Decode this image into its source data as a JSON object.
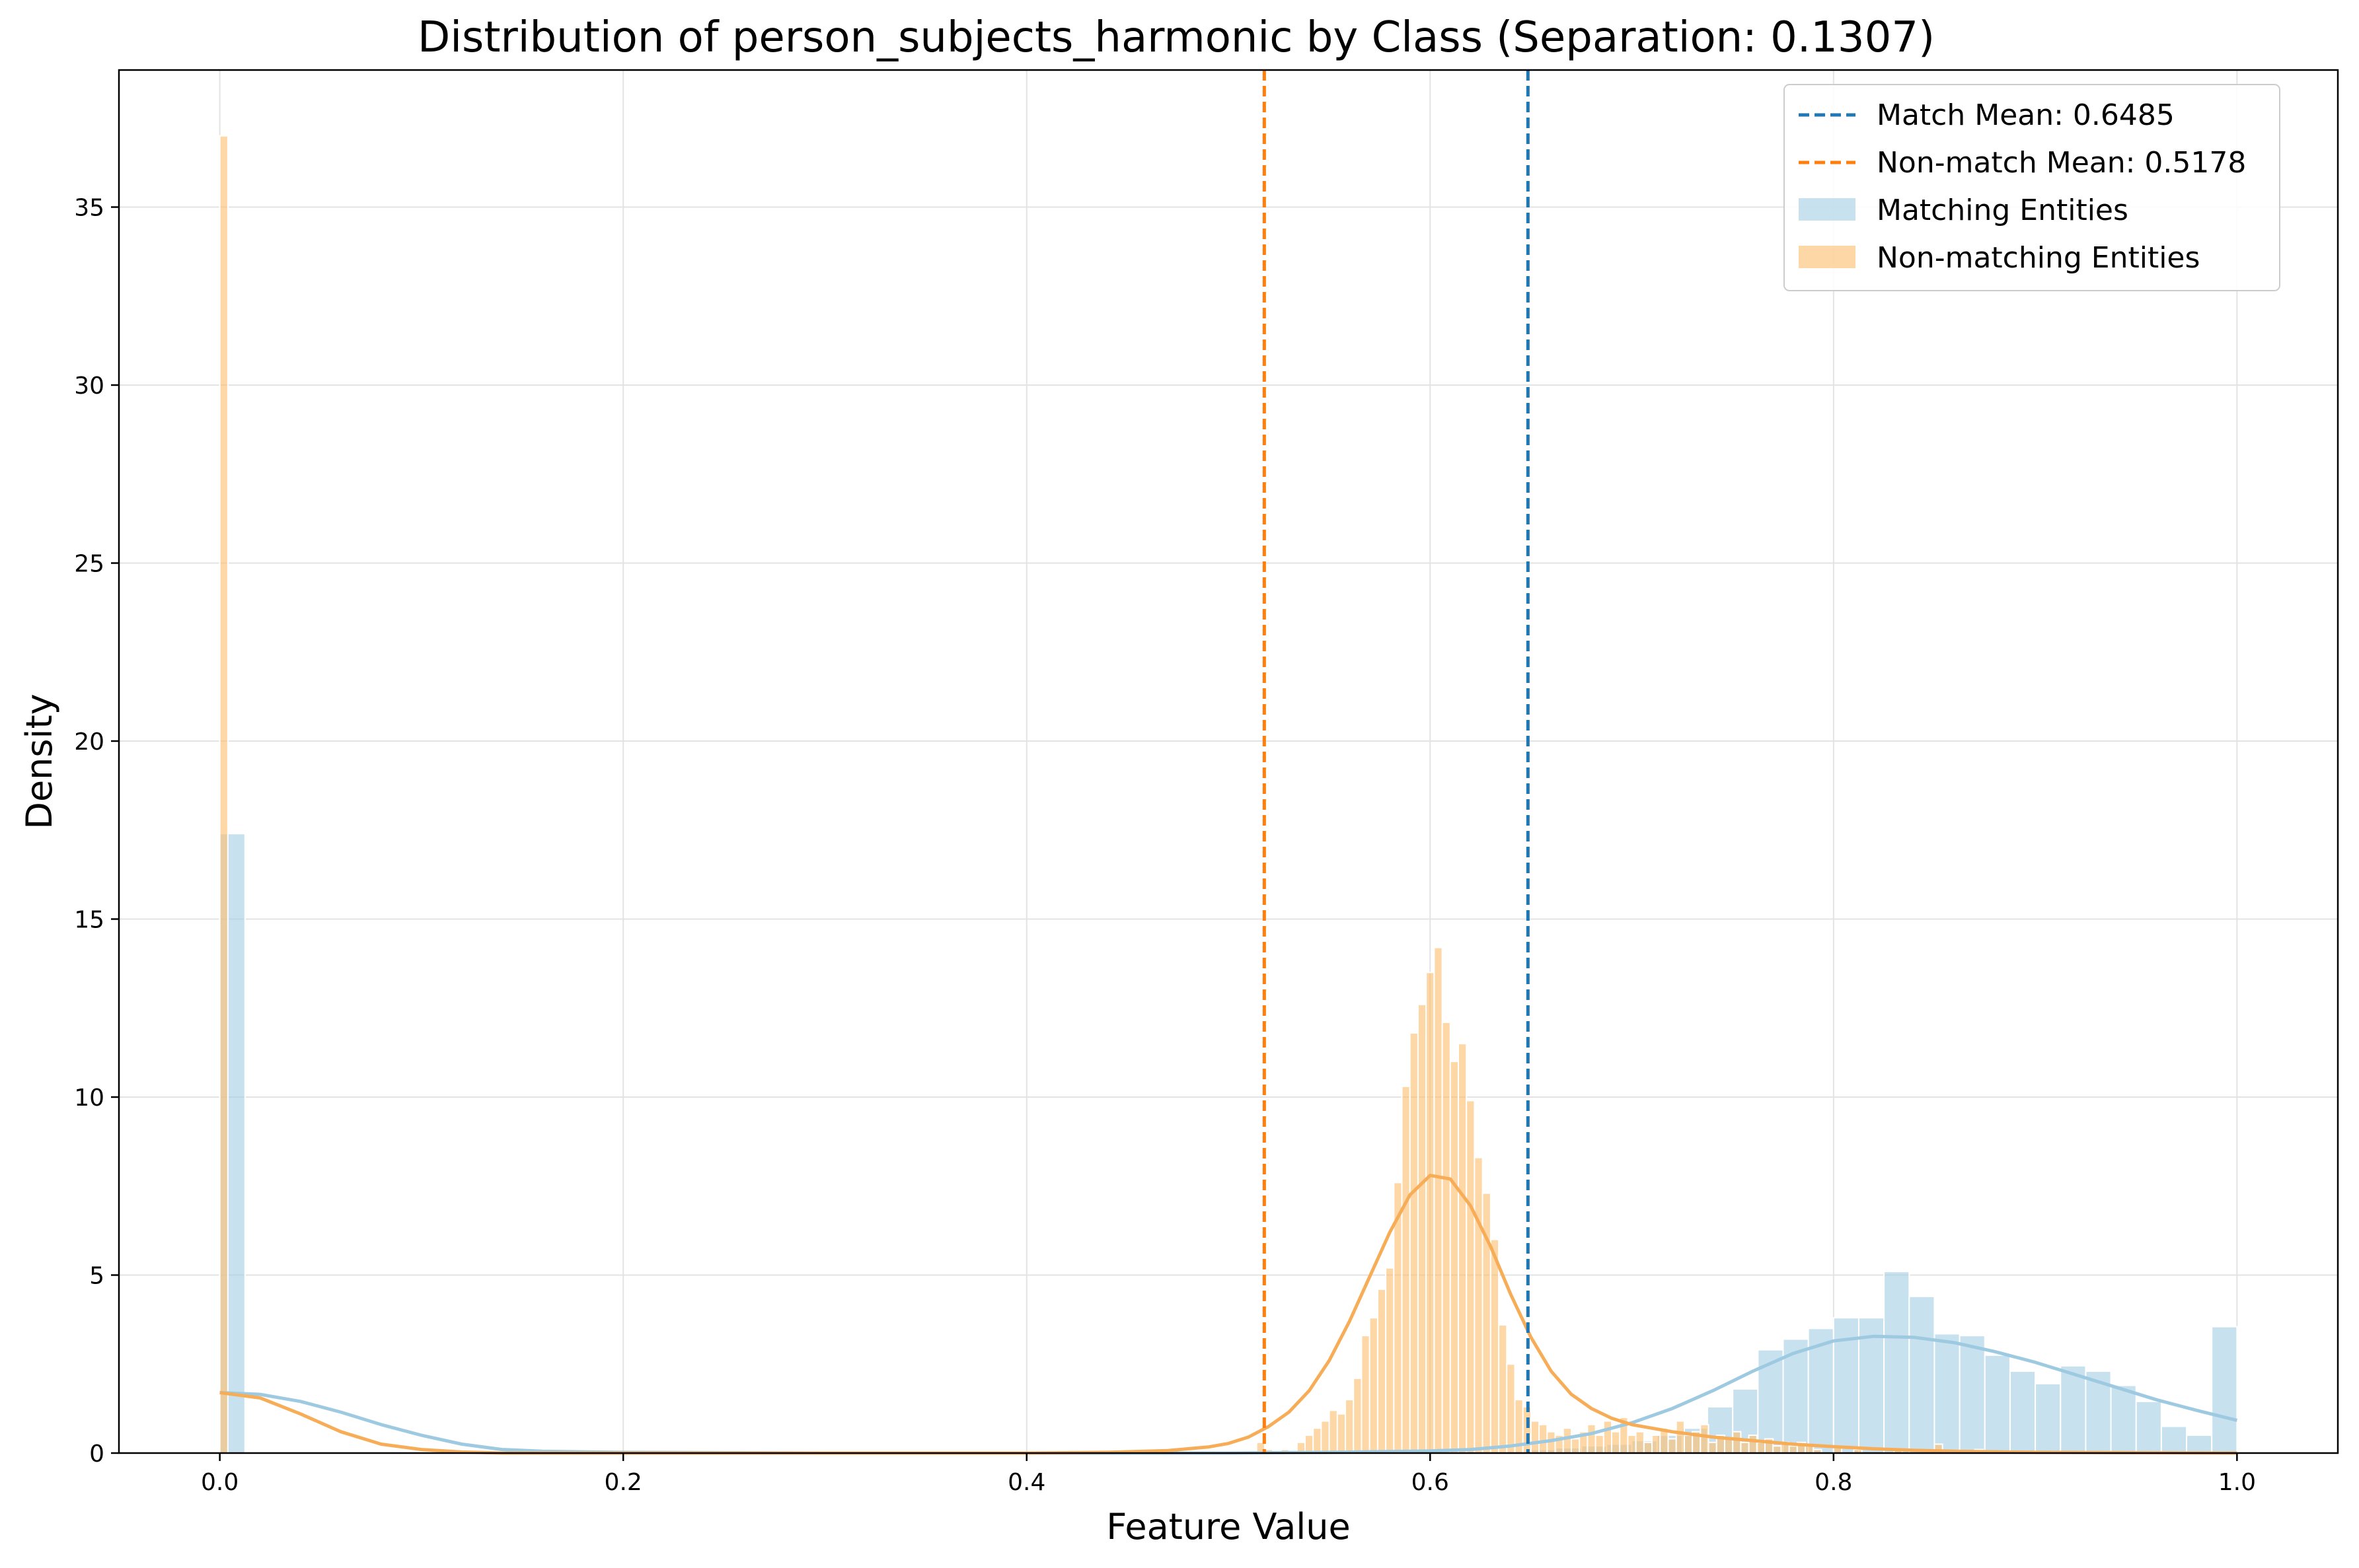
{
  "chart_data": {
    "type": "bar",
    "title": "Distribution of person_subjects_harmonic by Class (Separation: 0.1307)",
    "xlabel": "Feature Value",
    "ylabel": "Density",
    "xlim": [
      -0.05,
      1.05
    ],
    "ylim": [
      0,
      38.85
    ],
    "xticks": [
      "0.0",
      "0.2",
      "0.4",
      "0.6",
      "0.8",
      "1.0"
    ],
    "yticks": [
      "0",
      "5",
      "10",
      "15",
      "20",
      "25",
      "30",
      "35"
    ],
    "grid": true,
    "legend_position": "upper right",
    "colors": {
      "match_line": "#1f77b4",
      "nonmatch_line": "#ff7f0e",
      "match_fill": "#a6cee3",
      "nonmatch_fill": "#fdbf6f",
      "match_kde": "#9ecae1",
      "nonmatch_kde": "#f7ad57"
    },
    "legend": [
      {
        "label": "Match Mean: 0.6485",
        "kind": "dashed-line",
        "color": "#1f77b4"
      },
      {
        "label": "Non-match Mean: 0.5178",
        "kind": "dashed-line",
        "color": "#ff7f0e"
      },
      {
        "label": "Matching Entities",
        "kind": "patch",
        "color": "#a6cee3"
      },
      {
        "label": "Non-matching Entities",
        "kind": "patch",
        "color": "#fdbf6f"
      }
    ],
    "mean_lines": [
      {
        "name": "Match Mean",
        "value": 0.6485,
        "color": "#1f77b4"
      },
      {
        "name": "Non-match Mean",
        "value": 0.5178,
        "color": "#ff7f0e"
      }
    ],
    "series": [
      {
        "name": "Matching Entities",
        "bin_width": 0.0125,
        "bins": [
          [
            0.0,
            17.4
          ],
          [
            0.6375,
            0.05
          ],
          [
            0.65,
            0.1
          ],
          [
            0.6625,
            0.15
          ],
          [
            0.675,
            0.2
          ],
          [
            0.6875,
            0.25
          ],
          [
            0.7,
            0.35
          ],
          [
            0.7125,
            0.5
          ],
          [
            0.725,
            0.7
          ],
          [
            0.7375,
            1.3
          ],
          [
            0.75,
            1.8
          ],
          [
            0.7625,
            2.9
          ],
          [
            0.775,
            3.2
          ],
          [
            0.7875,
            3.5
          ],
          [
            0.8,
            3.8
          ],
          [
            0.8125,
            3.8
          ],
          [
            0.825,
            5.1
          ],
          [
            0.8375,
            4.4
          ],
          [
            0.85,
            3.35
          ],
          [
            0.8625,
            3.3
          ],
          [
            0.875,
            2.75
          ],
          [
            0.8875,
            2.3
          ],
          [
            0.9,
            1.95
          ],
          [
            0.9125,
            2.45
          ],
          [
            0.925,
            2.3
          ],
          [
            0.9375,
            1.9
          ],
          [
            0.95,
            1.45
          ],
          [
            0.9625,
            0.75
          ],
          [
            0.975,
            0.5
          ],
          [
            0.9875,
            3.55
          ]
        ],
        "kde": {
          "x": [
            0.0,
            0.02,
            0.04,
            0.06,
            0.08,
            0.1,
            0.12,
            0.14,
            0.16,
            0.2,
            0.3,
            0.4,
            0.5,
            0.55,
            0.6,
            0.62,
            0.64,
            0.66,
            0.68,
            0.7,
            0.72,
            0.74,
            0.76,
            0.78,
            0.8,
            0.82,
            0.84,
            0.86,
            0.88,
            0.9,
            0.92,
            0.94,
            0.96,
            0.98,
            1.0
          ],
          "y": [
            1.7,
            1.65,
            1.45,
            1.15,
            0.8,
            0.5,
            0.25,
            0.1,
            0.05,
            0.02,
            0.0,
            0.0,
            0.0,
            0.02,
            0.06,
            0.1,
            0.2,
            0.35,
            0.55,
            0.85,
            1.25,
            1.75,
            2.3,
            2.8,
            3.15,
            3.28,
            3.25,
            3.1,
            2.85,
            2.55,
            2.2,
            1.85,
            1.5,
            1.2,
            0.92
          ]
        }
      },
      {
        "name": "Non-matching Entities",
        "bin_width": 0.004,
        "bins": [
          [
            0.0,
            37.0
          ],
          [
            0.514,
            0.3
          ],
          [
            0.518,
            0.1
          ],
          [
            0.526,
            0.1
          ],
          [
            0.534,
            0.3
          ],
          [
            0.538,
            0.5
          ],
          [
            0.542,
            0.7
          ],
          [
            0.546,
            0.9
          ],
          [
            0.55,
            1.2
          ],
          [
            0.554,
            1.1
          ],
          [
            0.558,
            1.5
          ],
          [
            0.562,
            2.1
          ],
          [
            0.566,
            3.3
          ],
          [
            0.57,
            3.8
          ],
          [
            0.574,
            4.6
          ],
          [
            0.578,
            5.2
          ],
          [
            0.582,
            7.6
          ],
          [
            0.586,
            10.3
          ],
          [
            0.59,
            11.8
          ],
          [
            0.594,
            12.6
          ],
          [
            0.598,
            13.5
          ],
          [
            0.602,
            14.2
          ],
          [
            0.606,
            12.1
          ],
          [
            0.61,
            11.0
          ],
          [
            0.614,
            11.5
          ],
          [
            0.618,
            9.9
          ],
          [
            0.622,
            8.3
          ],
          [
            0.626,
            7.3
          ],
          [
            0.63,
            6.0
          ],
          [
            0.634,
            3.6
          ],
          [
            0.638,
            2.5
          ],
          [
            0.642,
            1.5
          ],
          [
            0.646,
            1.3
          ],
          [
            0.65,
            0.9
          ],
          [
            0.654,
            0.8
          ],
          [
            0.658,
            0.6
          ],
          [
            0.662,
            0.5
          ],
          [
            0.666,
            0.7
          ],
          [
            0.67,
            0.4
          ],
          [
            0.674,
            0.6
          ],
          [
            0.678,
            0.8
          ],
          [
            0.682,
            0.5
          ],
          [
            0.686,
            0.9
          ],
          [
            0.69,
            0.6
          ],
          [
            0.694,
            1.0
          ],
          [
            0.698,
            0.5
          ],
          [
            0.702,
            0.6
          ],
          [
            0.706,
            0.3
          ],
          [
            0.71,
            0.5
          ],
          [
            0.714,
            0.7
          ],
          [
            0.718,
            0.4
          ],
          [
            0.722,
            0.9
          ],
          [
            0.726,
            0.5
          ],
          [
            0.73,
            0.6
          ],
          [
            0.734,
            0.8
          ],
          [
            0.738,
            0.3
          ],
          [
            0.742,
            0.5
          ],
          [
            0.746,
            0.4
          ],
          [
            0.75,
            0.6
          ],
          [
            0.754,
            0.3
          ],
          [
            0.758,
            0.5
          ],
          [
            0.762,
            0.3
          ],
          [
            0.766,
            0.4
          ],
          [
            0.77,
            0.2
          ],
          [
            0.774,
            0.3
          ],
          [
            0.778,
            0.2
          ],
          [
            0.782,
            0.3
          ],
          [
            0.786,
            0.2
          ],
          [
            0.79,
            0.1
          ],
          [
            0.8,
            0.15
          ],
          [
            0.81,
            0.1
          ],
          [
            0.83,
            0.1
          ],
          [
            0.85,
            0.25
          ],
          [
            0.87,
            0.1
          ]
        ],
        "kde": {
          "x": [
            0.0,
            0.02,
            0.04,
            0.06,
            0.08,
            0.1,
            0.12,
            0.14,
            0.2,
            0.3,
            0.4,
            0.44,
            0.47,
            0.49,
            0.5,
            0.51,
            0.52,
            0.53,
            0.54,
            0.55,
            0.56,
            0.57,
            0.58,
            0.59,
            0.6,
            0.61,
            0.62,
            0.63,
            0.64,
            0.65,
            0.66,
            0.67,
            0.68,
            0.69,
            0.7,
            0.72,
            0.74,
            0.76,
            0.78,
            0.8,
            0.82,
            0.84,
            0.86,
            0.9,
            1.0
          ],
          "y": [
            1.7,
            1.55,
            1.1,
            0.6,
            0.25,
            0.1,
            0.03,
            0.0,
            0.0,
            0.0,
            0.0,
            0.02,
            0.07,
            0.17,
            0.27,
            0.45,
            0.75,
            1.15,
            1.75,
            2.6,
            3.7,
            4.95,
            6.2,
            7.25,
            7.8,
            7.7,
            6.95,
            5.8,
            4.45,
            3.25,
            2.3,
            1.65,
            1.25,
            0.98,
            0.8,
            0.6,
            0.45,
            0.35,
            0.25,
            0.18,
            0.12,
            0.08,
            0.05,
            0.02,
            0.0
          ]
        }
      }
    ]
  }
}
